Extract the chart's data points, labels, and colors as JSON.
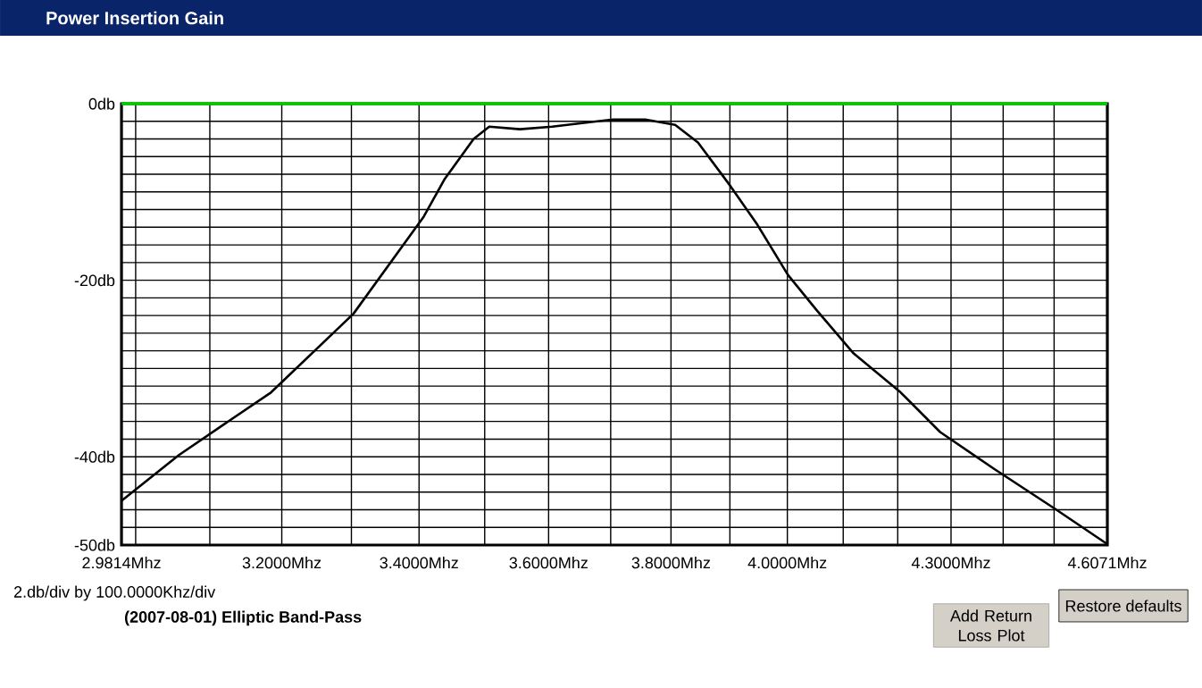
{
  "chart_data": {
    "type": "line",
    "title": "Power Insertion Gain",
    "x": [
      2.9814,
      3.058,
      3.185,
      3.303,
      3.407,
      3.439,
      3.483,
      3.507,
      3.555,
      3.606,
      3.666,
      3.704,
      3.757,
      3.807,
      3.846,
      3.901,
      3.948,
      4.001,
      4.052,
      4.119,
      4.205,
      4.279,
      4.383,
      4.502,
      4.6071
    ],
    "series": [
      {
        "color": "#000000",
        "values": [
          -45.0,
          -39.8,
          -32.7,
          -23.8,
          -12.8,
          -8.5,
          -4.0,
          -2.6,
          -2.9,
          -2.6,
          -2.1,
          -1.8,
          -1.8,
          -2.4,
          -4.4,
          -9.3,
          -13.7,
          -19.4,
          -23.4,
          -28.3,
          -32.7,
          -37.2,
          -41.4,
          -45.9,
          -49.9
        ]
      }
    ],
    "log": "x",
    "xlim": [
      2.9814,
      4.6071
    ],
    "ylim": [
      -50,
      0
    ],
    "xticks": [
      {
        "value": 2.9814,
        "label": "2.9814Mhz"
      },
      {
        "value": 3.0,
        "label": null
      },
      {
        "value": 3.1,
        "label": null
      },
      {
        "value": 3.2,
        "label": "3.2000Mhz"
      },
      {
        "value": 3.3,
        "label": null
      },
      {
        "value": 3.4,
        "label": "3.4000Mhz"
      },
      {
        "value": 3.5,
        "label": null
      },
      {
        "value": 3.6,
        "label": "3.6000Mhz"
      },
      {
        "value": 3.7,
        "label": null
      },
      {
        "value": 3.8,
        "label": "3.8000Mhz"
      },
      {
        "value": 3.9,
        "label": null
      },
      {
        "value": 4.0,
        "label": "4.0000Mhz"
      },
      {
        "value": 4.1,
        "label": null
      },
      {
        "value": 4.2,
        "label": null
      },
      {
        "value": 4.3,
        "label": "4.3000Mhz"
      },
      {
        "value": 4.4,
        "label": null
      },
      {
        "value": 4.5,
        "label": null
      },
      {
        "value": 4.6071,
        "label": "4.6071Mhz"
      }
    ],
    "yticks": [
      {
        "value": -50,
        "label": "-50db"
      },
      {
        "value": -48,
        "label": null
      },
      {
        "value": -46,
        "label": null
      },
      {
        "value": -44,
        "label": null
      },
      {
        "value": -42,
        "label": null
      },
      {
        "value": -40,
        "label": "-40db"
      },
      {
        "value": -38,
        "label": null
      },
      {
        "value": -36,
        "label": null
      },
      {
        "value": -34,
        "label": null
      },
      {
        "value": -32,
        "label": null
      },
      {
        "value": -30,
        "label": null
      },
      {
        "value": -28,
        "label": null
      },
      {
        "value": -26,
        "label": null
      },
      {
        "value": -24,
        "label": null
      },
      {
        "value": -22,
        "label": null
      },
      {
        "value": -20,
        "label": "-20db"
      },
      {
        "value": -18,
        "label": null
      },
      {
        "value": -16,
        "label": null
      },
      {
        "value": -14,
        "label": null
      },
      {
        "value": -12,
        "label": null
      },
      {
        "value": -10,
        "label": null
      },
      {
        "value": -8,
        "label": null
      },
      {
        "value": -6,
        "label": null
      },
      {
        "value": -4,
        "label": null
      },
      {
        "value": -2,
        "label": null
      },
      {
        "value": 0,
        "label": "0db"
      }
    ],
    "grid": true,
    "marker": "none",
    "line_style": "solid",
    "ref_lines": [
      {
        "axis": "y",
        "value": 0,
        "color": "#00cc00"
      }
    ],
    "annotations": [
      "2.db/div by 100.0000Khz/div",
      "(2007-08-01) Elliptic Band-Pass",
      "Add Return Loss Plot",
      "Restore defaults"
    ]
  }
}
